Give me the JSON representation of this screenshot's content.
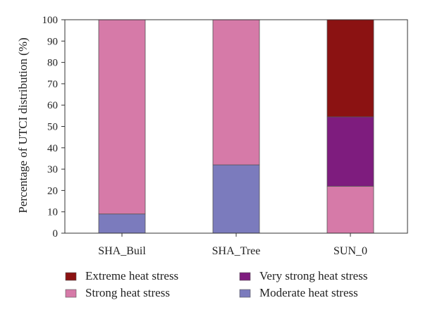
{
  "chart_data": {
    "type": "bar",
    "stacked": true,
    "title": "",
    "xlabel": "",
    "ylabel": "Percentage of UTCI distribution (%)",
    "ylim": [
      0,
      100
    ],
    "yticks": [
      "0",
      "10",
      "20",
      "30",
      "40",
      "50",
      "60",
      "70",
      "80",
      "90",
      "100"
    ],
    "categories": [
      "SHA_Buil",
      "SHA_Tree",
      "SUN_0"
    ],
    "series": [
      {
        "name": "Moderate heat stress",
        "color": "#7b7bbd",
        "values": [
          9,
          32,
          0
        ]
      },
      {
        "name": "Strong heat stress",
        "color": "#d67aa8",
        "values": [
          91,
          68,
          22
        ]
      },
      {
        "name": "Very strong heat stress",
        "color": "#7e1c7e",
        "values": [
          0,
          0,
          32.5
        ]
      },
      {
        "name": "Extreme heat stress",
        "color": "#8b1212",
        "values": [
          0,
          0,
          45.5
        ]
      }
    ],
    "legend": {
      "placement": "bottom",
      "order": [
        "Extreme heat stress",
        "Very strong heat stress",
        "Strong heat stress",
        "Moderate heat stress"
      ]
    },
    "grid": false
  }
}
